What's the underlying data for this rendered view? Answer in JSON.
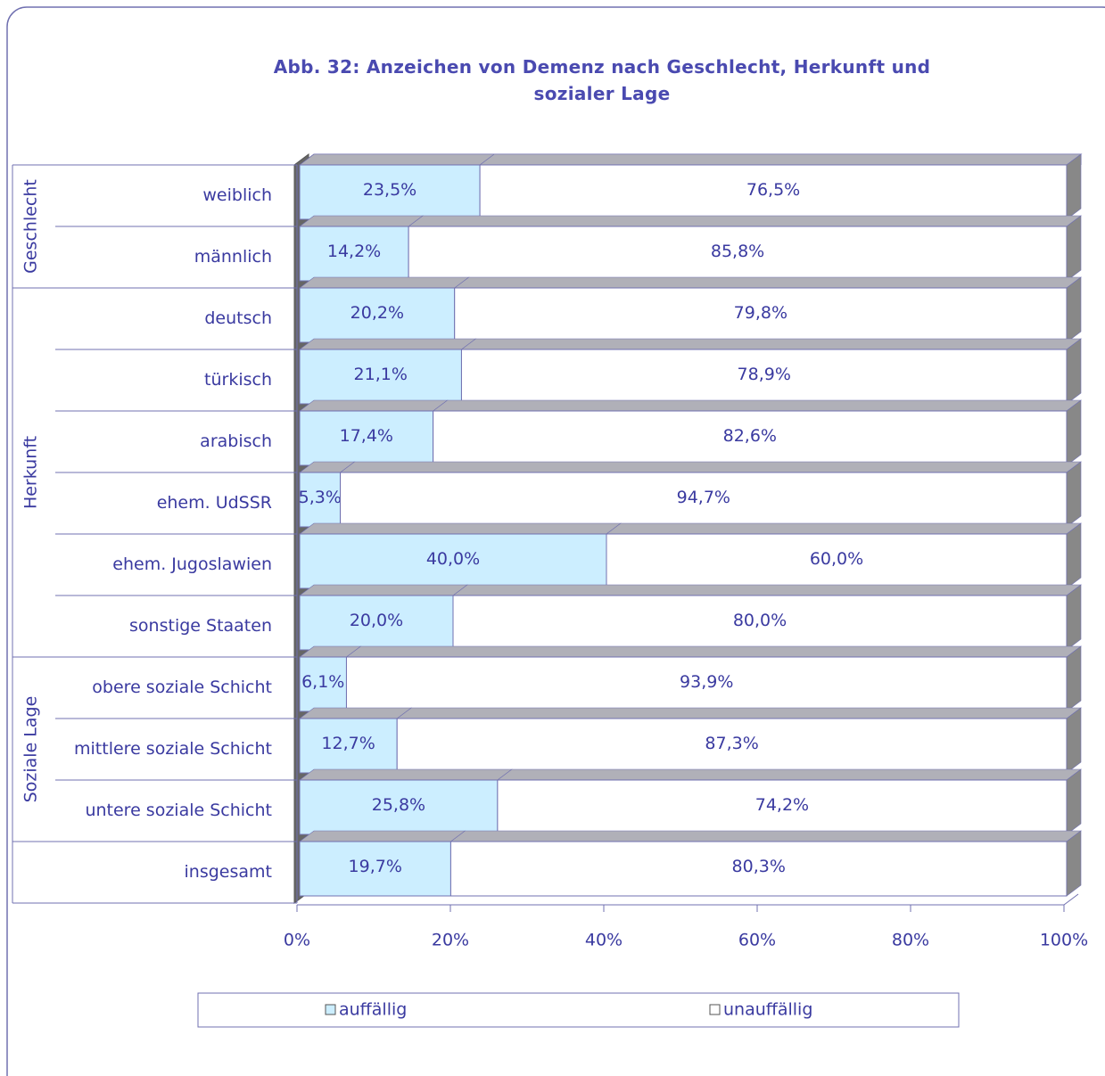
{
  "chart_data": {
    "type": "bar",
    "orientation": "horizontal",
    "stacked": true,
    "three_d": true,
    "title": "Abb. 32: Anzeichen von Demenz nach Geschlecht, Herkunft und sozialer Lage",
    "category_groups": [
      {
        "name": "Geschlecht",
        "categories": [
          "weiblich",
          "männlich"
        ]
      },
      {
        "name": "Herkunft",
        "categories": [
          "deutsch",
          "türkisch",
          "arabisch",
          "ehem. UdSSR",
          "ehem. Jugoslawien",
          "sonstige Staaten"
        ]
      },
      {
        "name": "Soziale Lage",
        "categories": [
          "obere soziale Schicht",
          "mittlere soziale Schicht",
          "untere soziale Schicht"
        ]
      },
      {
        "name": null,
        "categories": [
          "insgesamt"
        ]
      }
    ],
    "series": [
      {
        "name": "auffällig",
        "color": "#cceeff",
        "label_color": "#3a3aa0",
        "values": [
          23.5,
          14.2,
          20.2,
          21.1,
          17.4,
          5.3,
          40.0,
          20.0,
          6.1,
          12.7,
          25.8,
          19.7
        ],
        "value_labels": [
          "23,5%",
          "14,2%",
          "20,2%",
          "21,1%",
          "17,4%",
          "5,3%",
          "40,0%",
          "20,0%",
          "6,1%",
          "12,7%",
          "25,8%",
          "19,7%"
        ]
      },
      {
        "name": "unauffällig",
        "color": "#ffffff",
        "label_color": "#8a8ae0",
        "values": [
          76.5,
          85.8,
          79.8,
          78.9,
          82.6,
          94.7,
          60.0,
          80.0,
          93.9,
          87.3,
          74.2,
          80.3
        ],
        "value_labels": [
          "76,5%",
          "85,8%",
          "79,8%",
          "78,9%",
          "82,6%",
          "94,7%",
          "60,0%",
          "80,0%",
          "93,9%",
          "87,3%",
          "74,2%",
          "80,3%"
        ]
      }
    ],
    "xlim": [
      0,
      100
    ],
    "xticks": [
      {
        "value": 0,
        "label": "0%"
      },
      {
        "value": 20,
        "label": "20%"
      },
      {
        "value": 40,
        "label": "40%"
      },
      {
        "value": 60,
        "label": "60%"
      },
      {
        "value": 80,
        "label": "80%"
      },
      {
        "value": 100,
        "label": "100%"
      }
    ],
    "legend": "bottom"
  }
}
